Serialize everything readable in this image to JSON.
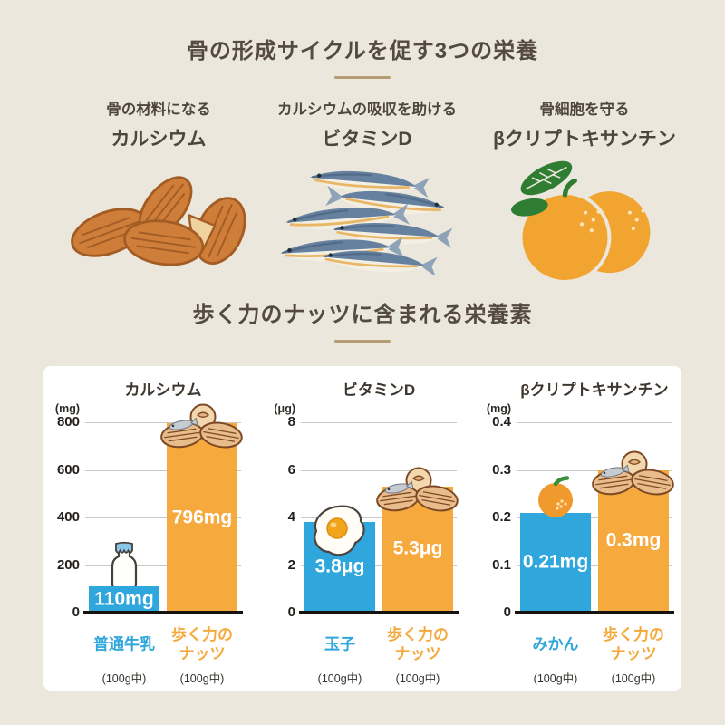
{
  "page": {
    "colors": {
      "background": "#ECE7DD",
      "panel": "#FFFFFF",
      "title_text": "#544A3F",
      "underline": "#B59D72",
      "blue": "#2FA7DC",
      "orange": "#F6A93D",
      "gridline": "#C9C9C9",
      "axis": "#16130F"
    }
  },
  "section1": {
    "title": "骨の形成サイクルを促す3つの栄養",
    "columns": [
      {
        "descriptor": "骨の材料になる",
        "nutrient": "カルシウム",
        "illustration": "almonds"
      },
      {
        "descriptor": "カルシウムの吸収を助ける",
        "nutrient": "ビタミンD",
        "illustration": "sardines"
      },
      {
        "descriptor": "骨細胞を守る",
        "nutrient": "βクリプトキサンチン",
        "illustration": "oranges"
      }
    ]
  },
  "section2": {
    "title": "歩く力のナッツに含まれる栄養素"
  },
  "chart_data": [
    {
      "type": "bar",
      "id": "calcium",
      "title": "カルシウム",
      "unit": "(mg)",
      "ylim": [
        0,
        800
      ],
      "grid": true,
      "legend": "none",
      "yticks": [
        {
          "label": "800",
          "value": 800
        },
        {
          "label": "600",
          "value": 600
        },
        {
          "label": "400",
          "value": 400
        },
        {
          "label": "200",
          "value": 200
        },
        {
          "label": "0",
          "value": 0
        }
      ],
      "bars": [
        {
          "category": "普通牛乳",
          "value": 110,
          "label": "110mg",
          "sub": "(100g中)",
          "color": "blue",
          "icon": "milk-bottle"
        },
        {
          "category": "歩く力の\nナッツ",
          "value": 796,
          "label": "796mg",
          "sub": "(100g中)",
          "color": "orange",
          "icon": "nuts"
        }
      ]
    },
    {
      "type": "bar",
      "id": "vitamin-d",
      "title": "ビタミンD",
      "unit": "(μg)",
      "ylim": [
        0,
        8
      ],
      "grid": true,
      "legend": "none",
      "yticks": [
        {
          "label": "8",
          "value": 8
        },
        {
          "label": "6",
          "value": 6
        },
        {
          "label": "4",
          "value": 4
        },
        {
          "label": "2",
          "value": 2
        },
        {
          "label": "0",
          "value": 0
        }
      ],
      "bars": [
        {
          "category": "玉子",
          "value": 3.8,
          "label": "3.8μg",
          "sub": "(100g中)",
          "color": "blue",
          "icon": "fried-egg"
        },
        {
          "category": "歩く力の\nナッツ",
          "value": 5.3,
          "label": "5.3μg",
          "sub": "(100g中)",
          "color": "orange",
          "icon": "nuts"
        }
      ]
    },
    {
      "type": "bar",
      "id": "beta-cryptoxanthin",
      "title": "βクリプトキサンチン",
      "unit": "(mg)",
      "ylim": [
        0,
        0.4
      ],
      "grid": true,
      "legend": "none",
      "yticks": [
        {
          "label": "0.4",
          "value": 0.4
        },
        {
          "label": "0.3",
          "value": 0.3
        },
        {
          "label": "0.2",
          "value": 0.2
        },
        {
          "label": "0.1",
          "value": 0.1
        },
        {
          "label": "0",
          "value": 0
        }
      ],
      "bars": [
        {
          "category": "みかん",
          "value": 0.21,
          "label": "0.21mg",
          "sub": "(100g中)",
          "color": "blue",
          "icon": "mikan"
        },
        {
          "category": "歩く力の\nナッツ",
          "value": 0.3,
          "label": "0.3mg",
          "sub": "(100g中)",
          "color": "orange",
          "icon": "nuts"
        }
      ]
    }
  ]
}
